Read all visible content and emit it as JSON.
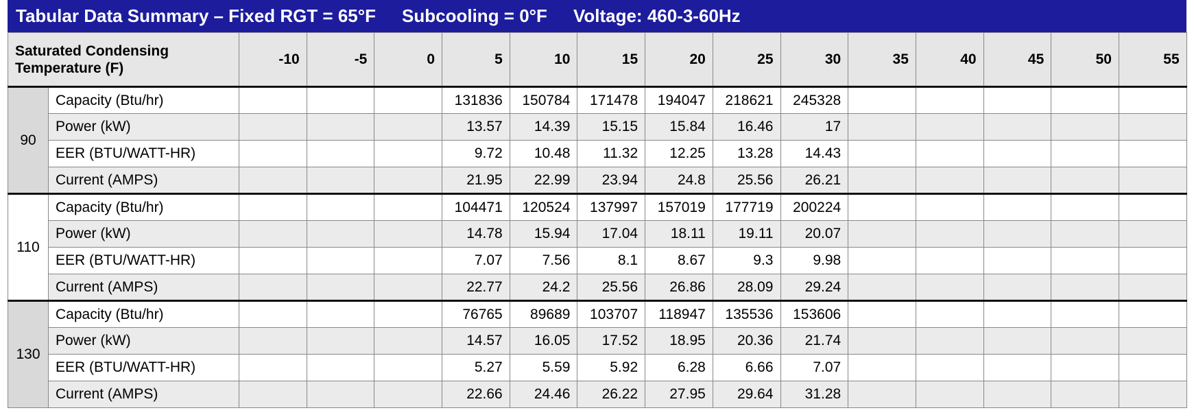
{
  "header": {
    "title": "Tabular Data Summary – Fixed RGT = 65°F",
    "subcooling": "Subcooling = 0°F",
    "voltage": "Voltage: 460-3-60Hz"
  },
  "table": {
    "corner": "Saturated Condensing Temperature (F)",
    "columns": [
      -10,
      -5,
      0,
      5,
      10,
      15,
      20,
      25,
      30,
      35,
      40,
      45,
      50,
      55
    ],
    "groups": [
      {
        "temp": 90,
        "rows": [
          {
            "label": "Capacity (Btu/hr)",
            "values": [
              null,
              null,
              null,
              131836,
              150784,
              171478,
              194047,
              218621,
              245328,
              null,
              null,
              null,
              null,
              null
            ]
          },
          {
            "label": "Power (kW)",
            "values": [
              null,
              null,
              null,
              13.57,
              14.39,
              15.15,
              15.84,
              16.46,
              17,
              null,
              null,
              null,
              null,
              null
            ]
          },
          {
            "label": "EER (BTU/WATT-HR)",
            "values": [
              null,
              null,
              null,
              9.72,
              10.48,
              11.32,
              12.25,
              13.28,
              14.43,
              null,
              null,
              null,
              null,
              null
            ]
          },
          {
            "label": "Current (AMPS)",
            "values": [
              null,
              null,
              null,
              21.95,
              22.99,
              23.94,
              24.8,
              25.56,
              26.21,
              null,
              null,
              null,
              null,
              null
            ]
          }
        ]
      },
      {
        "temp": 110,
        "rows": [
          {
            "label": "Capacity (Btu/hr)",
            "values": [
              null,
              null,
              null,
              104471,
              120524,
              137997,
              157019,
              177719,
              200224,
              null,
              null,
              null,
              null,
              null
            ]
          },
          {
            "label": "Power (kW)",
            "values": [
              null,
              null,
              null,
              14.78,
              15.94,
              17.04,
              18.11,
              19.11,
              20.07,
              null,
              null,
              null,
              null,
              null
            ]
          },
          {
            "label": "EER (BTU/WATT-HR)",
            "values": [
              null,
              null,
              null,
              7.07,
              7.56,
              8.1,
              8.67,
              9.3,
              9.98,
              null,
              null,
              null,
              null,
              null
            ]
          },
          {
            "label": "Current (AMPS)",
            "values": [
              null,
              null,
              null,
              22.77,
              24.2,
              25.56,
              26.86,
              28.09,
              29.24,
              null,
              null,
              null,
              null,
              null
            ]
          }
        ]
      },
      {
        "temp": 130,
        "rows": [
          {
            "label": "Capacity (Btu/hr)",
            "values": [
              null,
              null,
              null,
              76765,
              89689,
              103707,
              118947,
              135536,
              153606,
              null,
              null,
              null,
              null,
              null
            ]
          },
          {
            "label": "Power (kW)",
            "values": [
              null,
              null,
              null,
              14.57,
              16.05,
              17.52,
              18.95,
              20.36,
              21.74,
              null,
              null,
              null,
              null,
              null
            ]
          },
          {
            "label": "EER (BTU/WATT-HR)",
            "values": [
              null,
              null,
              null,
              5.27,
              5.59,
              5.92,
              6.28,
              6.66,
              7.07,
              null,
              null,
              null,
              null,
              null
            ]
          },
          {
            "label": "Current (AMPS)",
            "values": [
              null,
              null,
              null,
              22.66,
              24.46,
              26.22,
              27.95,
              29.64,
              31.28,
              null,
              null,
              null,
              null,
              null
            ]
          }
        ]
      }
    ]
  }
}
